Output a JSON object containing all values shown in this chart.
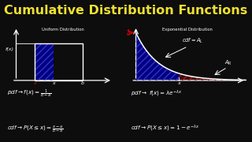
{
  "bg_color": "#0d0d0d",
  "title": "Cumulative Distribution Functions",
  "title_color": "#f0e030",
  "title_fontsize": 11.5,
  "separator_color": "#888888",
  "handwriting_color": "#ffffff",
  "uniform_title": "Uniform Distribution",
  "exponential_title": "Exponential Distribution",
  "blue_fill": "#000080",
  "blue_hatch_color": "#3333cc",
  "red_hatch_color": "#bb1111",
  "curve_color": "#ffffff",
  "axes_color": "#ffffff",
  "red_arrow_color": "#cc0000"
}
